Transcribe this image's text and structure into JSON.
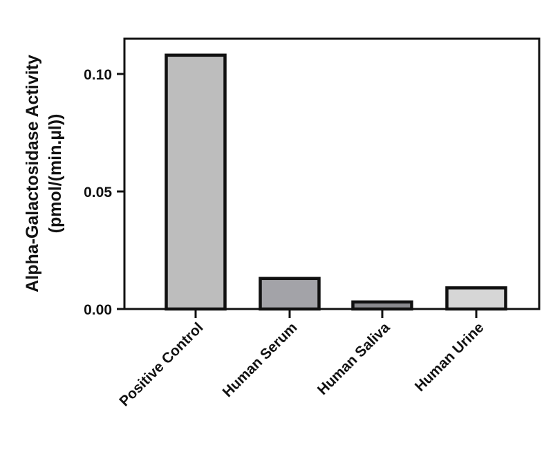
{
  "chart_data": {
    "type": "bar",
    "title": "",
    "xlabel": "",
    "ylabel_line1": "Alpha-Galactosidase Activity",
    "ylabel_line2": "(pmol/(min.µl))",
    "ylim": [
      0,
      0.115
    ],
    "yticks": [
      0.0,
      0.05,
      0.1
    ],
    "ytick_labels": [
      "0.00",
      "0.05",
      "0.10"
    ],
    "grid": false,
    "legend": "none",
    "categories": [
      "Positive Control",
      "Human Serum",
      "Human Saliva",
      "Human Urine"
    ],
    "values": [
      0.108,
      0.013,
      0.003,
      0.009
    ],
    "colors": [
      "#bdbdbd",
      "#a3a3a8",
      "#8a8a8e",
      "#d6d6d6"
    ],
    "edge_color": "#111111"
  }
}
